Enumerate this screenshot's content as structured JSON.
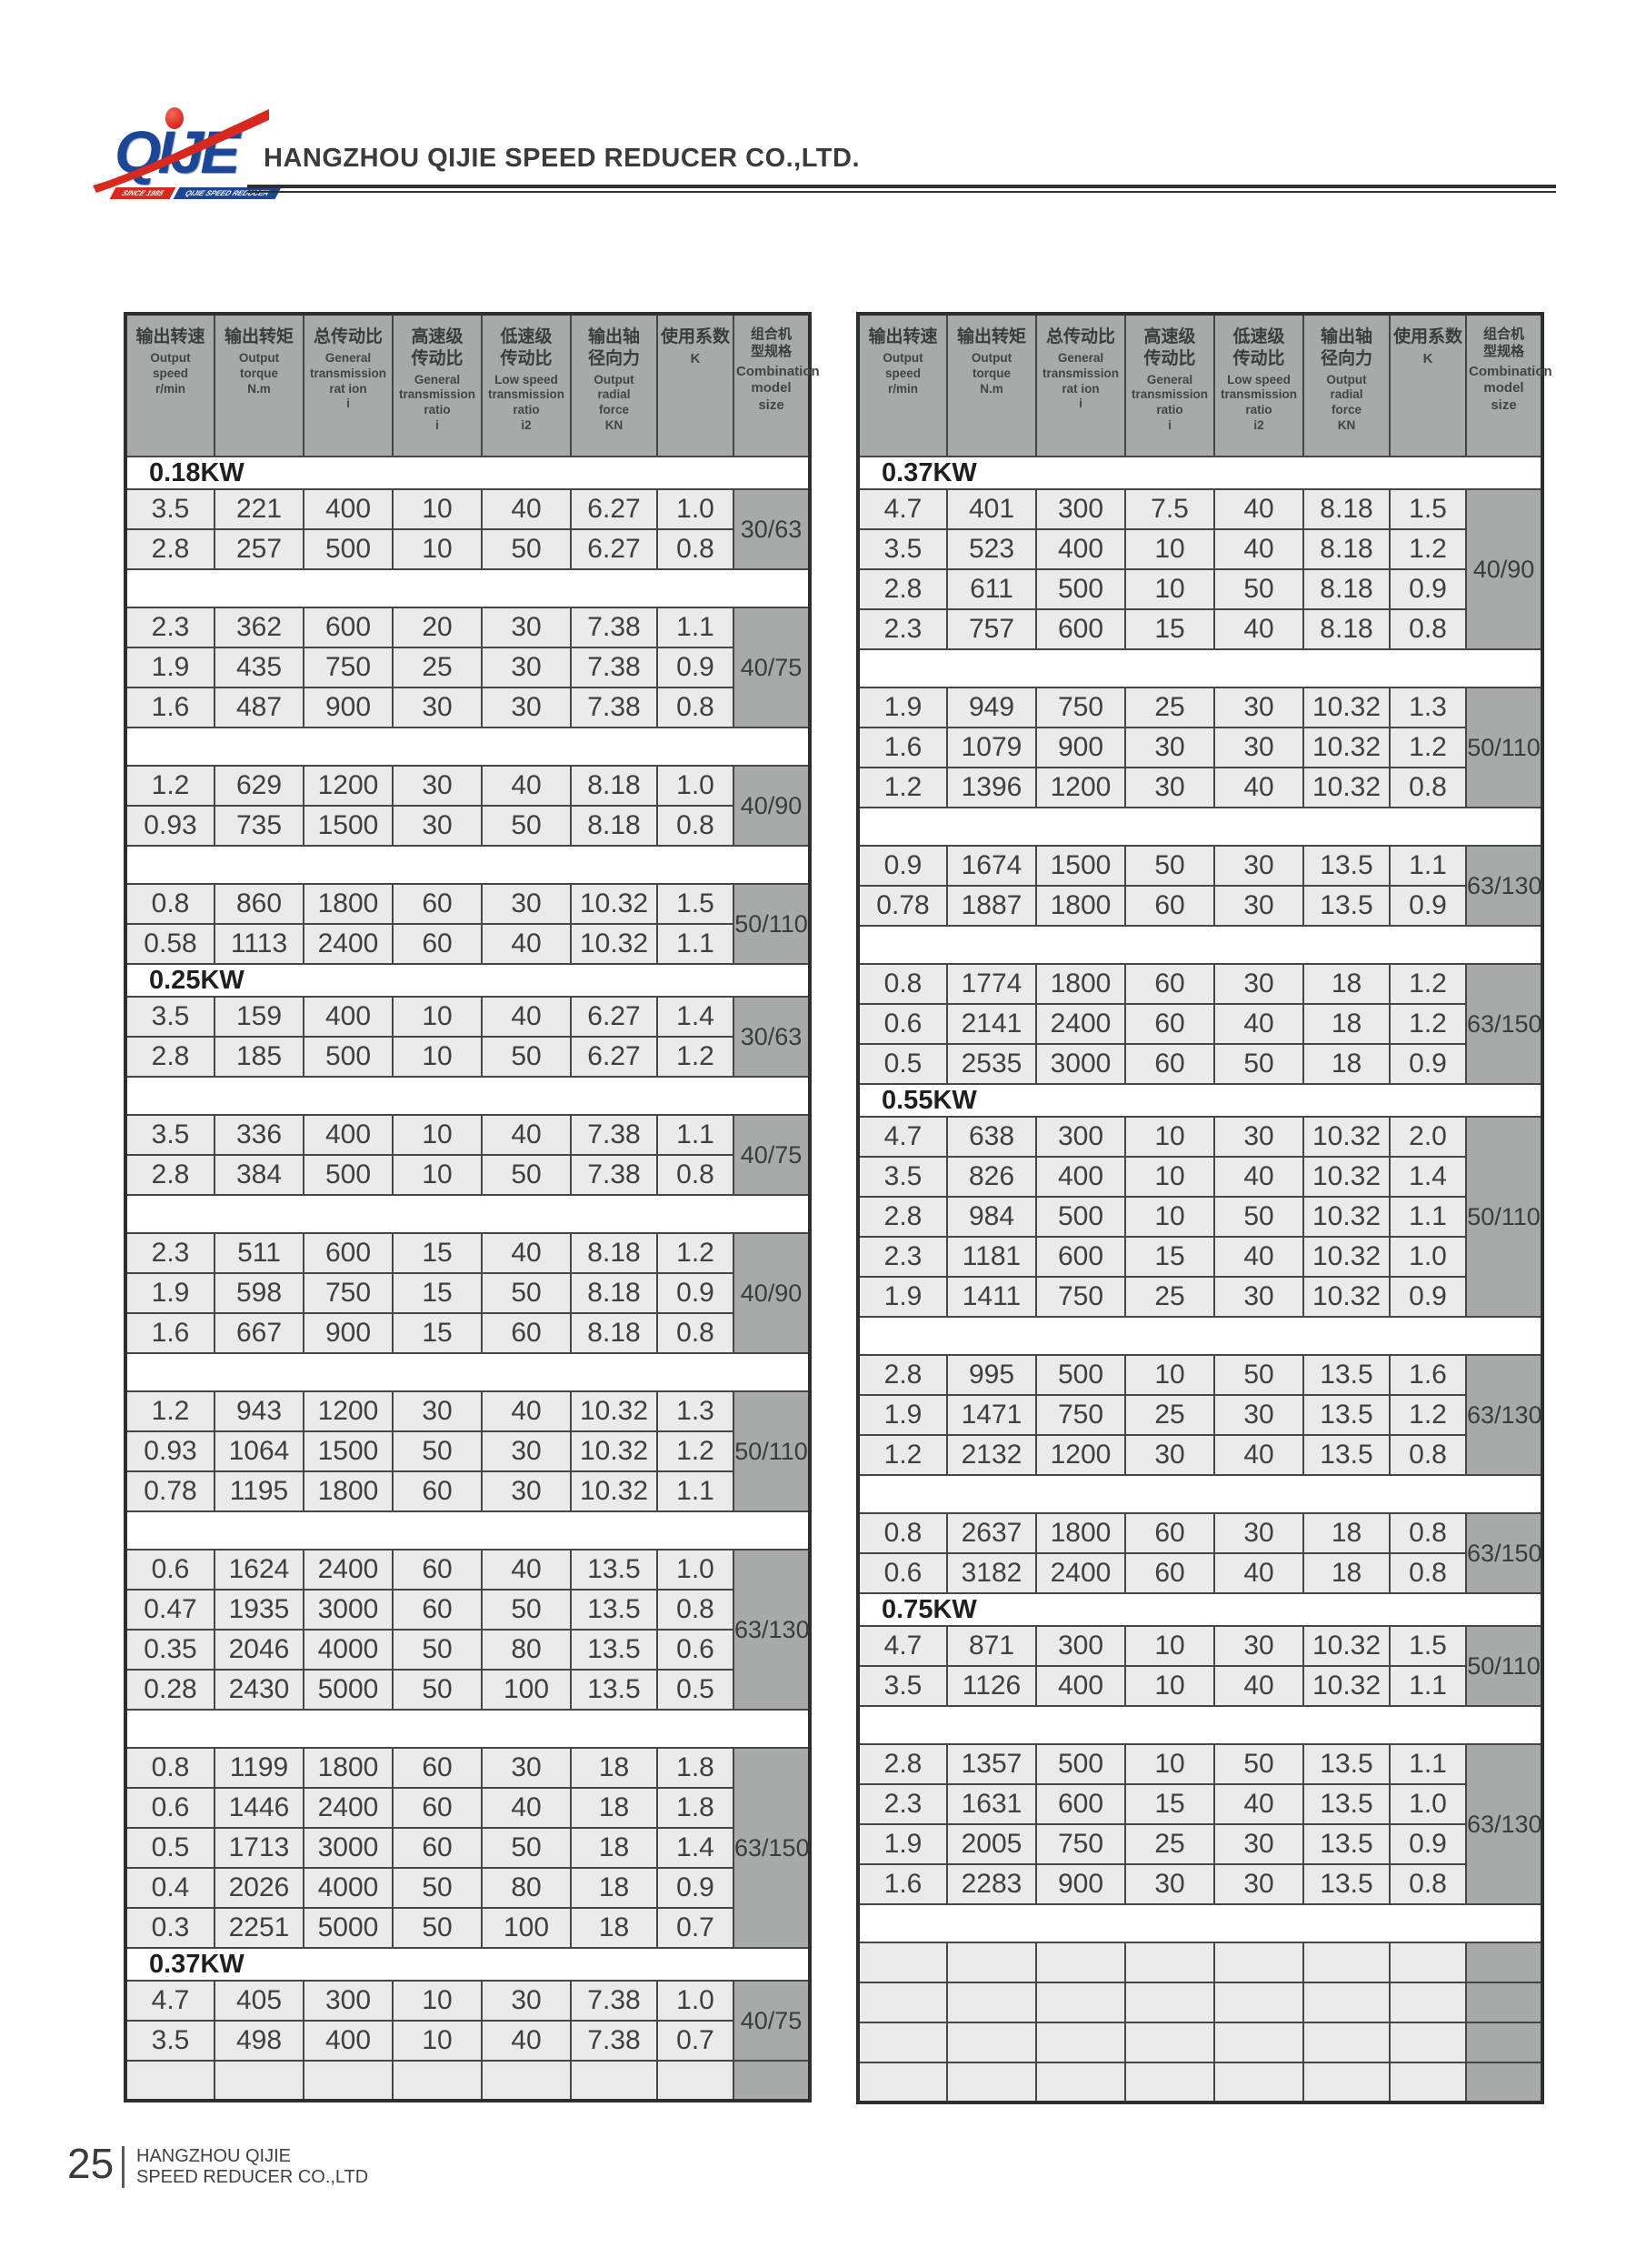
{
  "header": {
    "company_name": "HANGZHOU QIJIE SPEED REDUCER CO.,LTD.",
    "logo": {
      "brand": "QIJE",
      "banner_left": "SINCE 1985",
      "banner_right": "QIJIE SPEED REDUCER"
    }
  },
  "table_columns": [
    {
      "zh": "输出转速",
      "en": "Output\nspeed",
      "unit": "r/min"
    },
    {
      "zh": "输出转矩",
      "en": "Output\ntorque",
      "unit": "N.m"
    },
    {
      "zh": "总传动比",
      "en": "General\ntransmission\nrat ion",
      "unit": "i"
    },
    {
      "zh": "高速级\n传动比",
      "en": "General\ntransmission\nratio",
      "unit": "i"
    },
    {
      "zh": "低速级\n传动比",
      "en": "Low speed\ntransmission\nratio",
      "unit": "i2"
    },
    {
      "zh": "输出轴\n径向力",
      "en": "Output\nradial\nforce",
      "unit": "KN"
    },
    {
      "zh": "使用系数",
      "en": "K",
      "unit": ""
    },
    {
      "zh": "组合机\n型规格",
      "en": "Combination\nmodel\nsize",
      "unit": ""
    }
  ],
  "left_table": {
    "blocks": [
      {
        "type": "section",
        "label": "0.18KW"
      },
      {
        "type": "group",
        "size": "30/63",
        "rows": [
          [
            "3.5",
            "221",
            "400",
            "10",
            "40",
            "6.27",
            "1.0"
          ],
          [
            "2.8",
            "257",
            "500",
            "10",
            "50",
            "6.27",
            "0.8"
          ]
        ]
      },
      {
        "type": "sep"
      },
      {
        "type": "group",
        "size": "40/75",
        "rows": [
          [
            "2.3",
            "362",
            "600",
            "20",
            "30",
            "7.38",
            "1.1"
          ],
          [
            "1.9",
            "435",
            "750",
            "25",
            "30",
            "7.38",
            "0.9"
          ],
          [
            "1.6",
            "487",
            "900",
            "30",
            "30",
            "7.38",
            "0.8"
          ]
        ]
      },
      {
        "type": "sep"
      },
      {
        "type": "group",
        "size": "40/90",
        "rows": [
          [
            "1.2",
            "629",
            "1200",
            "30",
            "40",
            "8.18",
            "1.0"
          ],
          [
            "0.93",
            "735",
            "1500",
            "30",
            "50",
            "8.18",
            "0.8"
          ]
        ]
      },
      {
        "type": "sep"
      },
      {
        "type": "group",
        "size": "50/110",
        "rows": [
          [
            "0.8",
            "860",
            "1800",
            "60",
            "30",
            "10.32",
            "1.5"
          ],
          [
            "0.58",
            "1113",
            "2400",
            "60",
            "40",
            "10.32",
            "1.1"
          ]
        ]
      },
      {
        "type": "section",
        "label": "0.25KW"
      },
      {
        "type": "group",
        "size": "30/63",
        "rows": [
          [
            "3.5",
            "159",
            "400",
            "10",
            "40",
            "6.27",
            "1.4"
          ],
          [
            "2.8",
            "185",
            "500",
            "10",
            "50",
            "6.27",
            "1.2"
          ]
        ]
      },
      {
        "type": "sep"
      },
      {
        "type": "group",
        "size": "40/75",
        "rows": [
          [
            "3.5",
            "336",
            "400",
            "10",
            "40",
            "7.38",
            "1.1"
          ],
          [
            "2.8",
            "384",
            "500",
            "10",
            "50",
            "7.38",
            "0.8"
          ]
        ]
      },
      {
        "type": "sep"
      },
      {
        "type": "group",
        "size": "40/90",
        "rows": [
          [
            "2.3",
            "511",
            "600",
            "15",
            "40",
            "8.18",
            "1.2"
          ],
          [
            "1.9",
            "598",
            "750",
            "15",
            "50",
            "8.18",
            "0.9"
          ],
          [
            "1.6",
            "667",
            "900",
            "15",
            "60",
            "8.18",
            "0.8"
          ]
        ]
      },
      {
        "type": "sep"
      },
      {
        "type": "group",
        "size": "50/110",
        "rows": [
          [
            "1.2",
            "943",
            "1200",
            "30",
            "40",
            "10.32",
            "1.3"
          ],
          [
            "0.93",
            "1064",
            "1500",
            "50",
            "30",
            "10.32",
            "1.2"
          ],
          [
            "0.78",
            "1195",
            "1800",
            "60",
            "30",
            "10.32",
            "1.1"
          ]
        ]
      },
      {
        "type": "sep"
      },
      {
        "type": "group",
        "size": "63/130",
        "rows": [
          [
            "0.6",
            "1624",
            "2400",
            "60",
            "40",
            "13.5",
            "1.0"
          ],
          [
            "0.47",
            "1935",
            "3000",
            "60",
            "50",
            "13.5",
            "0.8"
          ],
          [
            "0.35",
            "2046",
            "4000",
            "50",
            "80",
            "13.5",
            "0.6"
          ],
          [
            "0.28",
            "2430",
            "5000",
            "50",
            "100",
            "13.5",
            "0.5"
          ]
        ]
      },
      {
        "type": "sep"
      },
      {
        "type": "group",
        "size": "63/150",
        "rows": [
          [
            "0.8",
            "1199",
            "1800",
            "60",
            "30",
            "18",
            "1.8"
          ],
          [
            "0.6",
            "1446",
            "2400",
            "60",
            "40",
            "18",
            "1.8"
          ],
          [
            "0.5",
            "1713",
            "3000",
            "60",
            "50",
            "18",
            "1.4"
          ],
          [
            "0.4",
            "2026",
            "4000",
            "50",
            "80",
            "18",
            "0.9"
          ],
          [
            "0.3",
            "2251",
            "5000",
            "50",
            "100",
            "18",
            "0.7"
          ]
        ]
      },
      {
        "type": "section",
        "label": "0.37KW"
      },
      {
        "type": "group",
        "size": "40/75",
        "rows": [
          [
            "4.7",
            "405",
            "300",
            "10",
            "30",
            "7.38",
            "1.0"
          ],
          [
            "3.5",
            "498",
            "400",
            "10",
            "40",
            "7.38",
            "0.7"
          ]
        ]
      },
      {
        "type": "empty",
        "count": 1
      }
    ]
  },
  "right_table": {
    "blocks": [
      {
        "type": "section",
        "label": "0.37KW"
      },
      {
        "type": "group",
        "size": "40/90",
        "rows": [
          [
            "4.7",
            "401",
            "300",
            "7.5",
            "40",
            "8.18",
            "1.5"
          ],
          [
            "3.5",
            "523",
            "400",
            "10",
            "40",
            "8.18",
            "1.2"
          ],
          [
            "2.8",
            "611",
            "500",
            "10",
            "50",
            "8.18",
            "0.9"
          ],
          [
            "2.3",
            "757",
            "600",
            "15",
            "40",
            "8.18",
            "0.8"
          ]
        ]
      },
      {
        "type": "sep"
      },
      {
        "type": "group",
        "size": "50/110",
        "rows": [
          [
            "1.9",
            "949",
            "750",
            "25",
            "30",
            "10.32",
            "1.3"
          ],
          [
            "1.6",
            "1079",
            "900",
            "30",
            "30",
            "10.32",
            "1.2"
          ],
          [
            "1.2",
            "1396",
            "1200",
            "30",
            "40",
            "10.32",
            "0.8"
          ]
        ]
      },
      {
        "type": "sep"
      },
      {
        "type": "group",
        "size": "63/130",
        "rows": [
          [
            "0.9",
            "1674",
            "1500",
            "50",
            "30",
            "13.5",
            "1.1"
          ],
          [
            "0.78",
            "1887",
            "1800",
            "60",
            "30",
            "13.5",
            "0.9"
          ]
        ]
      },
      {
        "type": "sep"
      },
      {
        "type": "group",
        "size": "63/150",
        "rows": [
          [
            "0.8",
            "1774",
            "1800",
            "60",
            "30",
            "18",
            "1.2"
          ],
          [
            "0.6",
            "2141",
            "2400",
            "60",
            "40",
            "18",
            "1.2"
          ],
          [
            "0.5",
            "2535",
            "3000",
            "60",
            "50",
            "18",
            "0.9"
          ]
        ]
      },
      {
        "type": "section",
        "label": "0.55KW"
      },
      {
        "type": "group",
        "size": "50/110",
        "rows": [
          [
            "4.7",
            "638",
            "300",
            "10",
            "30",
            "10.32",
            "2.0"
          ],
          [
            "3.5",
            "826",
            "400",
            "10",
            "40",
            "10.32",
            "1.4"
          ],
          [
            "2.8",
            "984",
            "500",
            "10",
            "50",
            "10.32",
            "1.1"
          ],
          [
            "2.3",
            "1181",
            "600",
            "15",
            "40",
            "10.32",
            "1.0"
          ],
          [
            "1.9",
            "1411",
            "750",
            "25",
            "30",
            "10.32",
            "0.9"
          ]
        ]
      },
      {
        "type": "sep"
      },
      {
        "type": "group",
        "size": "63/130",
        "rows": [
          [
            "2.8",
            "995",
            "500",
            "10",
            "50",
            "13.5",
            "1.6"
          ],
          [
            "1.9",
            "1471",
            "750",
            "25",
            "30",
            "13.5",
            "1.2"
          ],
          [
            "1.2",
            "2132",
            "1200",
            "30",
            "40",
            "13.5",
            "0.8"
          ]
        ]
      },
      {
        "type": "sep"
      },
      {
        "type": "group",
        "size": "63/150",
        "rows": [
          [
            "0.8",
            "2637",
            "1800",
            "60",
            "30",
            "18",
            "0.8"
          ],
          [
            "0.6",
            "3182",
            "2400",
            "60",
            "40",
            "18",
            "0.8"
          ]
        ]
      },
      {
        "type": "section",
        "label": "0.75KW"
      },
      {
        "type": "group",
        "size": "50/110",
        "rows": [
          [
            "4.7",
            "871",
            "300",
            "10",
            "30",
            "10.32",
            "1.5"
          ],
          [
            "3.5",
            "1126",
            "400",
            "10",
            "40",
            "10.32",
            "1.1"
          ]
        ]
      },
      {
        "type": "sep"
      },
      {
        "type": "group",
        "size": "63/130",
        "rows": [
          [
            "2.8",
            "1357",
            "500",
            "10",
            "50",
            "13.5",
            "1.1"
          ],
          [
            "2.3",
            "1631",
            "600",
            "15",
            "40",
            "13.5",
            "1.0"
          ],
          [
            "1.9",
            "2005",
            "750",
            "25",
            "30",
            "13.5",
            "0.9"
          ],
          [
            "1.6",
            "2283",
            "900",
            "30",
            "30",
            "13.5",
            "0.8"
          ]
        ]
      },
      {
        "type": "sep"
      },
      {
        "type": "empty",
        "count": 4
      }
    ]
  },
  "footer": {
    "page_number": "25",
    "company_line1": "HANGZHOU QIJIE",
    "company_line2": "SPEED REDUCER CO.,LTD"
  },
  "colors": {
    "header_bg": "#a7aaa9",
    "cell_bg": "#e9eae9",
    "combo_bg": "#a7aaa9",
    "inner_border": "#454746",
    "outer_border": "#2d2f2e",
    "brand_blue": "#1d4697",
    "brand_red": "#d8291f"
  }
}
